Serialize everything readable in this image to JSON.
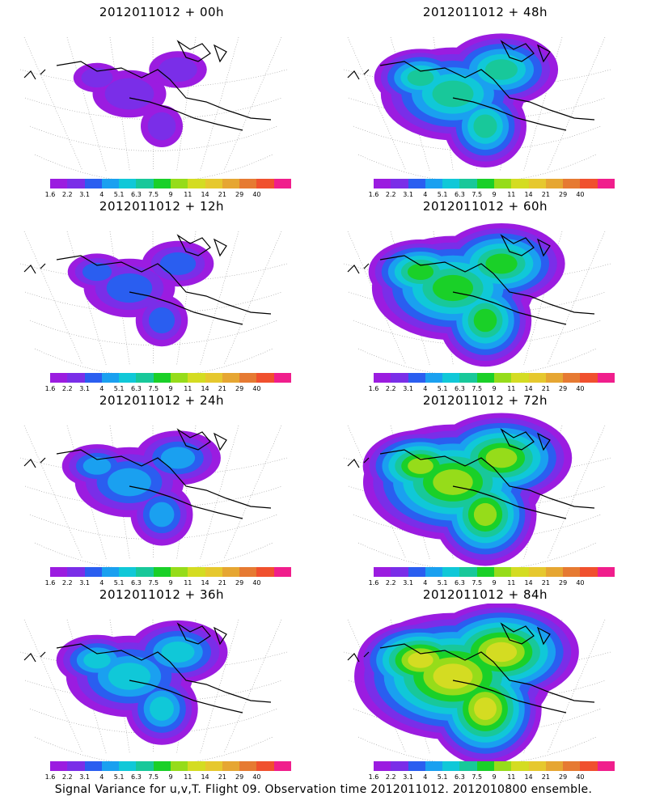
{
  "caption": "Signal Variance for u,v,T. Flight 09. Observation time 2012011012. 2012010800 ensemble.",
  "colorbar": {
    "colors": [
      "#9b1ce0",
      "#7a2ee8",
      "#2a5ef0",
      "#1aa0f0",
      "#10c8d8",
      "#18c89a",
      "#1ad028",
      "#96dc1a",
      "#d4dc22",
      "#e6c82e",
      "#e6a632",
      "#e67a32",
      "#f0502e",
      "#f01e8c"
    ],
    "labels": [
      "1.6",
      "2.2",
      "3.1",
      "4",
      "5.1",
      "6.3",
      "7.5",
      "9",
      "11",
      "14",
      "21",
      "29",
      "40"
    ]
  },
  "panels": [
    {
      "title": "2012011012 + 00h",
      "intensity": 0
    },
    {
      "title": "2012011012 + 48h",
      "intensity": 4
    },
    {
      "title": "2012011012 + 12h",
      "intensity": 1
    },
    {
      "title": "2012011012 + 60h",
      "intensity": 5
    },
    {
      "title": "2012011012 + 24h",
      "intensity": 2
    },
    {
      "title": "2012011012 + 72h",
      "intensity": 6
    },
    {
      "title": "2012011012 + 36h",
      "intensity": 3
    },
    {
      "title": "2012011012 + 84h",
      "intensity": 7
    }
  ]
}
